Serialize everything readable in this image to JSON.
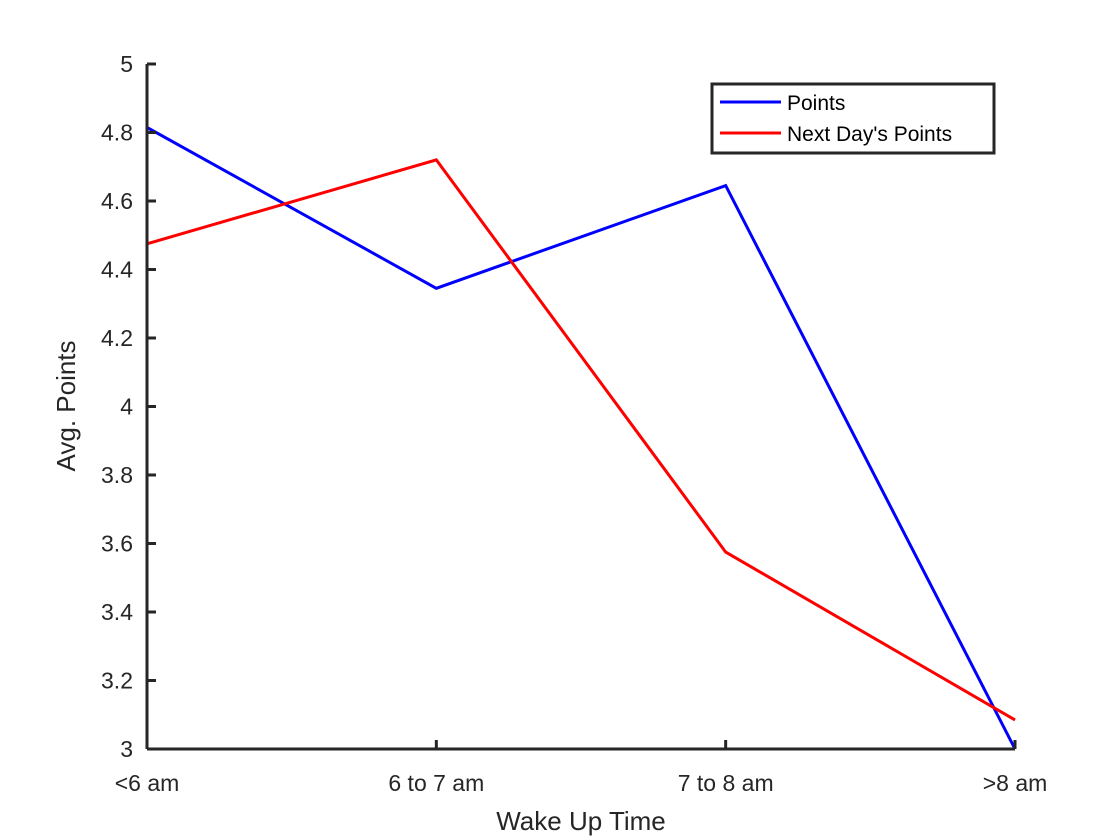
{
  "chart_data": {
    "type": "line",
    "categories": [
      "<6 am",
      "6 to 7 am",
      "7 to 8 am",
      ">8 am"
    ],
    "series": [
      {
        "name": "Points",
        "values": [
          4.815,
          4.345,
          4.645,
          3.0
        ],
        "color": "#0000ff"
      },
      {
        "name": "Next Day's Points",
        "values": [
          4.475,
          4.72,
          3.575,
          3.085
        ],
        "color": "#ff0000"
      }
    ],
    "xlabel": "Wake Up Time",
    "ylabel": "Avg. Points",
    "ylim": [
      3,
      5
    ],
    "yticks": [
      3,
      3.2,
      3.4,
      3.6,
      3.8,
      4,
      4.2,
      4.4,
      4.6,
      4.8,
      5
    ],
    "ytick_labels": [
      "3",
      "3.2",
      "3.4",
      "3.6",
      "3.8",
      "4",
      "4.2",
      "4.4",
      "4.6",
      "4.8",
      "5"
    ],
    "grid": false,
    "legend_position": "top-right"
  }
}
